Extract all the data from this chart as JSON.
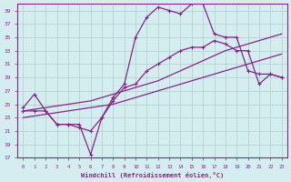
{
  "xlabel": "Windchill (Refroidissement éolien,°C)",
  "xlim": [
    -0.5,
    23.5
  ],
  "ylim": [
    17,
    40
  ],
  "xticks": [
    0,
    1,
    2,
    3,
    4,
    5,
    6,
    7,
    8,
    9,
    10,
    11,
    12,
    13,
    14,
    15,
    16,
    17,
    18,
    19,
    20,
    21,
    22,
    23
  ],
  "yticks": [
    17,
    19,
    21,
    23,
    25,
    27,
    29,
    31,
    33,
    35,
    37,
    39
  ],
  "bg_color": "#d4eef0",
  "grid_color": "#b0cccc",
  "line_color": "#882288",
  "line1_x": [
    0,
    1,
    2,
    3,
    4,
    5,
    6,
    7,
    8,
    9,
    10,
    11,
    12,
    13,
    14,
    15,
    16,
    17,
    18,
    19,
    20,
    21,
    22,
    23
  ],
  "line1_y": [
    24.5,
    26.5,
    24,
    22,
    22,
    21.5,
    21,
    23,
    25.5,
    27.5,
    28,
    30,
    31,
    32,
    33,
    33.5,
    33.5,
    34.5,
    34,
    33,
    33,
    28,
    29.5,
    29
  ],
  "line2_x": [
    0,
    1,
    2,
    3,
    4,
    5,
    6,
    7,
    8,
    9,
    10,
    11,
    12,
    13,
    14,
    15,
    16,
    17,
    18,
    19,
    20,
    21,
    22,
    23
  ],
  "line2_y": [
    24,
    24,
    24,
    22,
    22,
    22,
    17.5,
    23,
    26,
    28,
    35,
    38,
    39.5,
    39,
    38.5,
    40,
    40,
    35.5,
    35,
    35,
    30,
    29.5,
    29.5,
    29
  ],
  "line3_x": [
    0,
    2,
    4,
    6,
    8,
    10,
    12,
    14,
    16,
    18,
    20,
    22,
    23
  ],
  "line3_y": [
    24,
    24.5,
    25,
    25.5,
    26.5,
    27.5,
    28.5,
    30,
    31.5,
    33,
    34,
    35,
    35.5
  ],
  "line4_x": [
    0,
    2,
    4,
    6,
    8,
    10,
    12,
    14,
    16,
    18,
    20,
    22,
    23
  ],
  "line4_y": [
    23,
    23.5,
    24,
    24.5,
    25,
    26,
    27,
    28,
    29,
    30,
    31,
    32,
    32.5
  ]
}
